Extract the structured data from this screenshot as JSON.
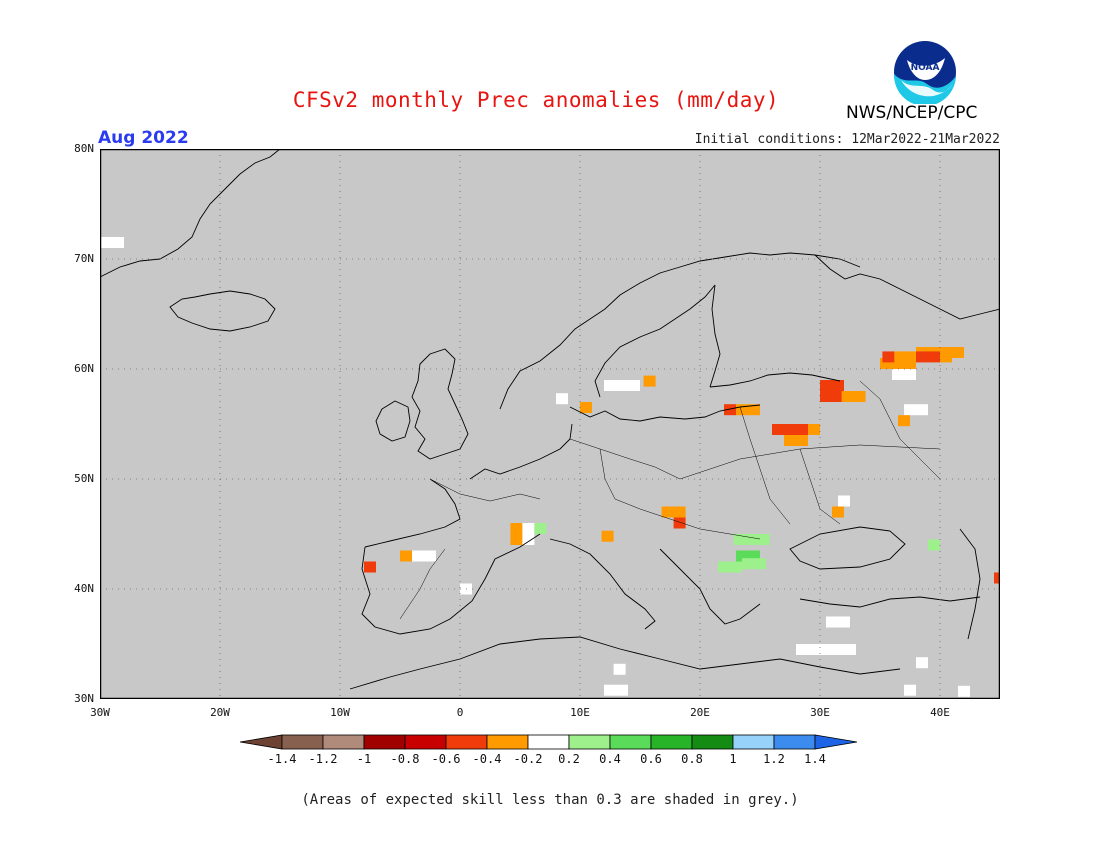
{
  "title": "CFSv2 monthly Prec anomalies (mm/day)",
  "valid_month": "Aug 2022",
  "initial_conditions": "Initial conditions: 12Mar2022-21Mar2022",
  "org_label": "NWS/NCEP/CPC",
  "logo_text": "NOAA",
  "footnote": "(Areas of expected skill less than 0.3 are shaded in grey.)",
  "map": {
    "background_color": "#c8c8c8",
    "lon_range": [
      -30,
      45
    ],
    "lat_range": [
      30,
      80
    ],
    "lat_labels": [
      "80N",
      "70N",
      "60N",
      "50N",
      "40N",
      "30N"
    ],
    "lon_labels": [
      "30W",
      "20W",
      "10W",
      "0",
      "10E",
      "20E",
      "30E",
      "40E"
    ]
  },
  "colorbar": {
    "tick_labels": [
      "-1.4",
      "-1.2",
      "-1",
      "-0.8",
      "-0.6",
      "-0.4",
      "-0.2",
      "0.2",
      "0.4",
      "0.6",
      "0.8",
      "1",
      "1.2",
      "1.4"
    ],
    "colors": {
      "below_min": "#6e4232",
      "segments": [
        "#876050",
        "#b08a7a",
        "#a00000",
        "#c80000",
        "#f03c0a",
        "#ff9a00",
        "#ffffff",
        "#9ef08c",
        "#5adc5a",
        "#28b428",
        "#148c14",
        "#96d2fa",
        "#3c8cf0"
      ],
      "above_max": "#1e64e6"
    }
  },
  "anomaly_cells": [
    {
      "lon": -30,
      "lat": 71,
      "w": 2,
      "h": 1,
      "value": 0.0
    },
    {
      "lon": -8,
      "lat": 41.5,
      "w": 1,
      "h": 1,
      "value": -0.6
    },
    {
      "lon": -5,
      "lat": 42.5,
      "w": 1,
      "h": 1,
      "value": -0.4
    },
    {
      "lon": -4,
      "lat": 42.5,
      "w": 2,
      "h": 1,
      "value": 0.0
    },
    {
      "lon": 0,
      "lat": 39.5,
      "w": 1,
      "h": 1,
      "value": 0.0
    },
    {
      "lon": 4.2,
      "lat": 44,
      "w": 1,
      "h": 2,
      "value": -0.4
    },
    {
      "lon": 5.2,
      "lat": 44,
      "w": 1,
      "h": 2,
      "value": 0.0
    },
    {
      "lon": 6.2,
      "lat": 45,
      "w": 1,
      "h": 1,
      "value": 0.3
    },
    {
      "lon": 8,
      "lat": 56.8,
      "w": 1,
      "h": 1,
      "value": 0.0
    },
    {
      "lon": 10,
      "lat": 56,
      "w": 1,
      "h": 1,
      "value": -0.4
    },
    {
      "lon": 11.8,
      "lat": 44.3,
      "w": 1,
      "h": 1,
      "value": -0.4
    },
    {
      "lon": 12,
      "lat": 58,
      "w": 3,
      "h": 1,
      "value": 0.0
    },
    {
      "lon": 15.3,
      "lat": 58.4,
      "w": 1,
      "h": 1,
      "value": -0.4
    },
    {
      "lon": 16.8,
      "lat": 46.5,
      "w": 2,
      "h": 1,
      "value": -0.4
    },
    {
      "lon": 17.8,
      "lat": 45.5,
      "w": 1,
      "h": 1,
      "value": -0.6
    },
    {
      "lon": 22.8,
      "lat": 44,
      "w": 3,
      "h": 1,
      "value": 0.3
    },
    {
      "lon": 21.5,
      "lat": 41.5,
      "w": 2,
      "h": 1,
      "value": 0.3
    },
    {
      "lon": 23,
      "lat": 42.5,
      "w": 2,
      "h": 1,
      "value": 0.5
    },
    {
      "lon": 23.5,
      "lat": 41.8,
      "w": 2,
      "h": 1,
      "value": 0.3
    },
    {
      "lon": 22,
      "lat": 55.8,
      "w": 1,
      "h": 1,
      "value": -0.6
    },
    {
      "lon": 23,
      "lat": 55.8,
      "w": 2,
      "h": 1,
      "value": -0.4
    },
    {
      "lon": 26,
      "lat": 54,
      "w": 3,
      "h": 1,
      "value": -0.6
    },
    {
      "lon": 29,
      "lat": 54,
      "w": 1,
      "h": 1,
      "value": -0.4
    },
    {
      "lon": 27,
      "lat": 53,
      "w": 2,
      "h": 1,
      "value": -0.4
    },
    {
      "lon": 30,
      "lat": 57,
      "w": 2,
      "h": 2,
      "value": -0.6
    },
    {
      "lon": 31.8,
      "lat": 57,
      "w": 2,
      "h": 1,
      "value": -0.4
    },
    {
      "lon": 31,
      "lat": 46.5,
      "w": 1,
      "h": 1,
      "value": -0.4
    },
    {
      "lon": 31.5,
      "lat": 47.5,
      "w": 1,
      "h": 1,
      "value": 0.0
    },
    {
      "lon": 30.5,
      "lat": 36.5,
      "w": 2,
      "h": 1,
      "value": 0.0
    },
    {
      "lon": 28,
      "lat": 34,
      "w": 5,
      "h": 1,
      "value": 0.0
    },
    {
      "lon": 35,
      "lat": 60,
      "w": 3,
      "h": 1,
      "value": -0.4
    },
    {
      "lon": 35.2,
      "lat": 60.6,
      "w": 1,
      "h": 1,
      "value": -0.6
    },
    {
      "lon": 36.2,
      "lat": 60.6,
      "w": 2,
      "h": 1,
      "value": -0.4
    },
    {
      "lon": 38,
      "lat": 61,
      "w": 4,
      "h": 1,
      "value": -0.4
    },
    {
      "lon": 38,
      "lat": 60.6,
      "w": 2,
      "h": 1,
      "value": -0.6
    },
    {
      "lon": 40,
      "lat": 60.6,
      "w": 1,
      "h": 1,
      "value": -0.4
    },
    {
      "lon": 36,
      "lat": 59,
      "w": 2,
      "h": 1,
      "value": 0.0
    },
    {
      "lon": 37,
      "lat": 55.8,
      "w": 2,
      "h": 1,
      "value": 0.0
    },
    {
      "lon": 36.5,
      "lat": 54.8,
      "w": 1,
      "h": 1,
      "value": -0.4
    },
    {
      "lon": 39,
      "lat": 43.5,
      "w": 1,
      "h": 1,
      "value": 0.3
    },
    {
      "lon": 44.5,
      "lat": 40.5,
      "w": 0.5,
      "h": 1,
      "value": -0.6
    },
    {
      "lon": 38,
      "lat": 32.8,
      "w": 1,
      "h": 1,
      "value": 0.0
    },
    {
      "lon": 12,
      "lat": 30.3,
      "w": 2,
      "h": 1,
      "value": 0.0
    },
    {
      "lon": 12.8,
      "lat": 32.2,
      "w": 1,
      "h": 1,
      "value": 0.0
    },
    {
      "lon": 37,
      "lat": 30.3,
      "w": 1,
      "h": 1,
      "value": 0.0
    },
    {
      "lon": 41.5,
      "lat": 30.2,
      "w": 1,
      "h": 1,
      "value": 0.0
    }
  ]
}
